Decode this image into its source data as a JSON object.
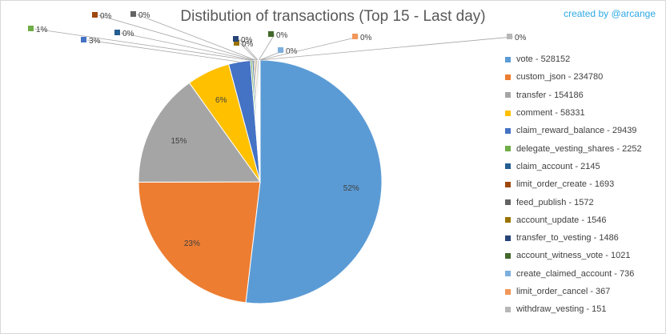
{
  "chart_data": {
    "type": "pie",
    "title": "Distibution of transactions (Top 15 - Last day)",
    "credit": "created by @arcange",
    "series": [
      {
        "name": "vote",
        "value": 528152,
        "label": "52%",
        "color": "#5b9bd5",
        "legend": "vote - 528152"
      },
      {
        "name": "custom_json",
        "value": 234780,
        "label": "23%",
        "color": "#ed7d31",
        "legend": "custom_json - 234780"
      },
      {
        "name": "transfer",
        "value": 154186,
        "label": "15%",
        "color": "#a5a5a5",
        "legend": "transfer - 154186"
      },
      {
        "name": "comment",
        "value": 58331,
        "label": "6%",
        "color": "#ffc000",
        "legend": "comment - 58331"
      },
      {
        "name": "claim_reward_balance",
        "value": 29439,
        "label": "3%",
        "color": "#4472c4",
        "legend": "claim_reward_balance - 29439"
      },
      {
        "name": "delegate_vesting_shares",
        "value": 2252,
        "label": "1%",
        "color": "#70ad47",
        "legend": "delegate_vesting_shares - 2252"
      },
      {
        "name": "claim_account",
        "value": 2145,
        "label": "0%",
        "color": "#255e91",
        "legend": "claim_account - 2145"
      },
      {
        "name": "limit_order_create",
        "value": 1693,
        "label": "0%",
        "color": "#9e480e",
        "legend": "limit_order_create - 1693"
      },
      {
        "name": "feed_publish",
        "value": 1572,
        "label": "0%",
        "color": "#636363",
        "legend": "feed_publish - 1572"
      },
      {
        "name": "account_update",
        "value": 1546,
        "label": "0%",
        "color": "#997300",
        "legend": "account_update - 1546"
      },
      {
        "name": "transfer_to_vesting",
        "value": 1486,
        "label": "0%",
        "color": "#264478",
        "legend": "transfer_to_vesting - 1486"
      },
      {
        "name": "account_witness_vote",
        "value": 1021,
        "label": "0%",
        "color": "#43682b",
        "legend": "account_witness_vote - 1021"
      },
      {
        "name": "create_claimed_account",
        "value": 736,
        "label": "0%",
        "color": "#7cafdd",
        "legend": "create_claimed_account - 736"
      },
      {
        "name": "limit_order_cancel",
        "value": 367,
        "label": "0%",
        "color": "#f1975a",
        "legend": "limit_order_cancel - 367"
      },
      {
        "name": "withdraw_vesting",
        "value": 151,
        "label": "0%",
        "color": "#b7b7b7",
        "legend": "withdraw_vesting - 151"
      }
    ],
    "legend_position": "right"
  }
}
